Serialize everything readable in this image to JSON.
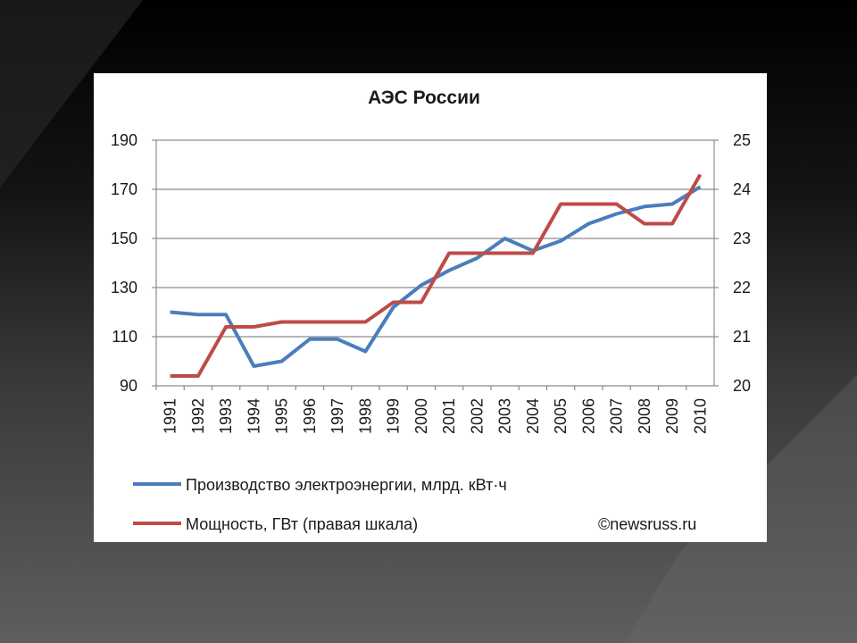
{
  "slide": {
    "background_colors": [
      "#000000",
      "#5e5e5e"
    ]
  },
  "chart_data": {
    "type": "line",
    "title": "АЭС России",
    "x": [
      "1991",
      "1992",
      "1993",
      "1994",
      "1995",
      "1996",
      "1997",
      "1998",
      "1999",
      "2000",
      "2001",
      "2002",
      "2003",
      "2004",
      "2005",
      "2006",
      "2007",
      "2008",
      "2009",
      "2010"
    ],
    "y_left": {
      "ticks": [
        "190",
        "170",
        "150",
        "130",
        "110",
        "90"
      ],
      "ylim": [
        90,
        190
      ]
    },
    "y_right": {
      "ticks": [
        "25",
        "24",
        "23",
        "22",
        "21",
        "20"
      ],
      "ylim": [
        20,
        25
      ]
    },
    "grid": true,
    "legend_position": "bottom",
    "series": [
      {
        "name": "Производство электроэнергии, млрд. кВт·ч",
        "axis": "left",
        "color": "#4a7ebb",
        "values": [
          120,
          119,
          119,
          98,
          100,
          109,
          109,
          104,
          122,
          131,
          137,
          142,
          150,
          145,
          149,
          156,
          160,
          163,
          164,
          171
        ]
      },
      {
        "name": "Мощность, ГВт (правая шкала)",
        "axis": "right",
        "color": "#be4b48",
        "values": [
          20.2,
          20.2,
          21.2,
          21.2,
          21.3,
          21.3,
          21.3,
          21.3,
          21.7,
          21.7,
          22.7,
          22.7,
          22.7,
          22.7,
          23.7,
          23.7,
          23.7,
          23.3,
          23.3,
          24.3
        ]
      }
    ],
    "source_note": "©newsruss.ru"
  }
}
